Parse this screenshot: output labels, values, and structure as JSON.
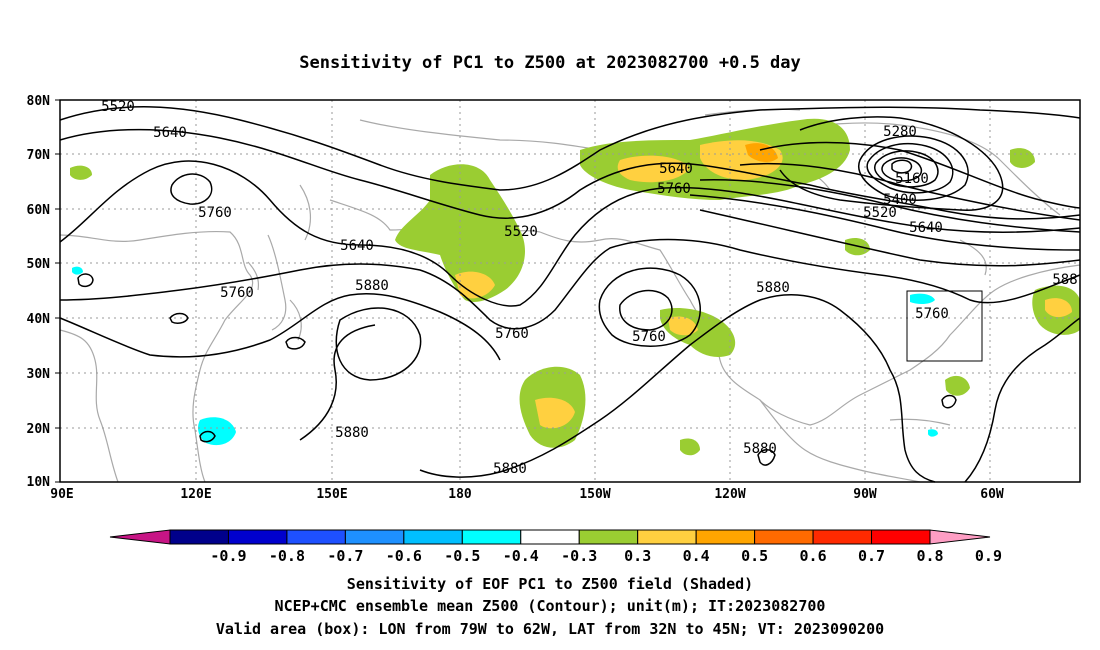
{
  "title": "Sensitivity of PC1 to Z500 at 2023082700 +0.5 day",
  "map": {
    "lat_ticks": [
      "80N",
      "70N",
      "60N",
      "50N",
      "40N",
      "30N",
      "20N",
      "10N"
    ],
    "lon_ticks": [
      "90E",
      "120E",
      "150E",
      "180",
      "150W",
      "120W",
      "90W",
      "60W"
    ],
    "lon_range": [
      "90E",
      "50W"
    ],
    "lat_range": [
      "10N",
      "80N"
    ],
    "box": {
      "label": "Valid area",
      "lon": [
        "79W",
        "62W"
      ],
      "lat": [
        "32N",
        "45N"
      ]
    },
    "contour_labels": [
      "5520",
      "5640",
      "5760",
      "5640",
      "5520",
      "5880",
      "5760",
      "5760",
      "5640",
      "5760",
      "5880",
      "5880",
      "5880",
      "5760",
      "5880",
      "5280",
      "5160",
      "5400",
      "5520",
      "5640",
      "588"
    ]
  },
  "colorbar": {
    "labels": [
      "-0.9",
      "-0.8",
      "-0.7",
      "-0.6",
      "-0.5",
      "-0.4",
      "-0.3",
      "0.3",
      "0.4",
      "0.5",
      "0.6",
      "0.7",
      "0.8",
      "0.9"
    ],
    "colors": [
      "#c71585",
      "#00008b",
      "#0000cd",
      "#1e50ff",
      "#1e90ff",
      "#00bfff",
      "#00ffff",
      "#ffffff",
      "#9acd32",
      "#ffd040",
      "#ffa500",
      "#ff6a00",
      "#ff2a00",
      "#ff0000",
      "#ff9ec4"
    ]
  },
  "captions": [
    "Sensitivity of EOF PC1 to Z500 field (Shaded)",
    "NCEP+CMC ensemble mean Z500 (Contour); unit(m); IT:2023082700",
    "Valid area (box): LON from 79W to 62W, LAT from 32N to 45N; VT: 2023090200"
  ]
}
